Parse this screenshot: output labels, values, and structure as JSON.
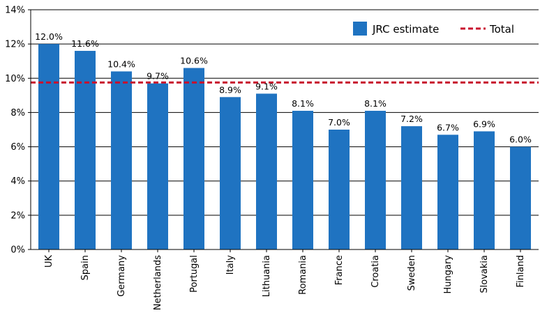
{
  "chart_data": {
    "type": "bar",
    "categories": [
      "UK",
      "Spain",
      "Germany",
      "Netherlands",
      "Portugal",
      "Italy",
      "Lithuania",
      "Romania",
      "France",
      "Croatia",
      "Sweden",
      "Hungary",
      "Slovakia",
      "Finland"
    ],
    "series": [
      {
        "name": "JRC estimate",
        "values": [
          12.0,
          11.6,
          10.4,
          9.7,
          10.6,
          8.9,
          9.1,
          8.1,
          7.0,
          8.1,
          7.2,
          6.7,
          6.9,
          6.0
        ],
        "labels": [
          "12.0%",
          "11.6%",
          "10.4%",
          "9.7%",
          "10.6%",
          "8.9%",
          "9.1%",
          "8.1%",
          "7.0%",
          "8.1%",
          "7.2%",
          "6.7%",
          "6.9%",
          "6.0%"
        ],
        "color": "#1f73c1"
      }
    ],
    "reference_line": {
      "name": "Total",
      "value": 9.75,
      "color": "#c8102e",
      "style": "dashed"
    },
    "y_ticks": [
      "0%",
      "2%",
      "4%",
      "6%",
      "8%",
      "10%",
      "12%",
      "14%"
    ],
    "ylim": [
      0,
      14
    ],
    "grid": true,
    "legend": {
      "placement": "top-right",
      "items": [
        "JRC estimate",
        "Total"
      ]
    },
    "title": "",
    "xlabel": "",
    "ylabel": ""
  }
}
